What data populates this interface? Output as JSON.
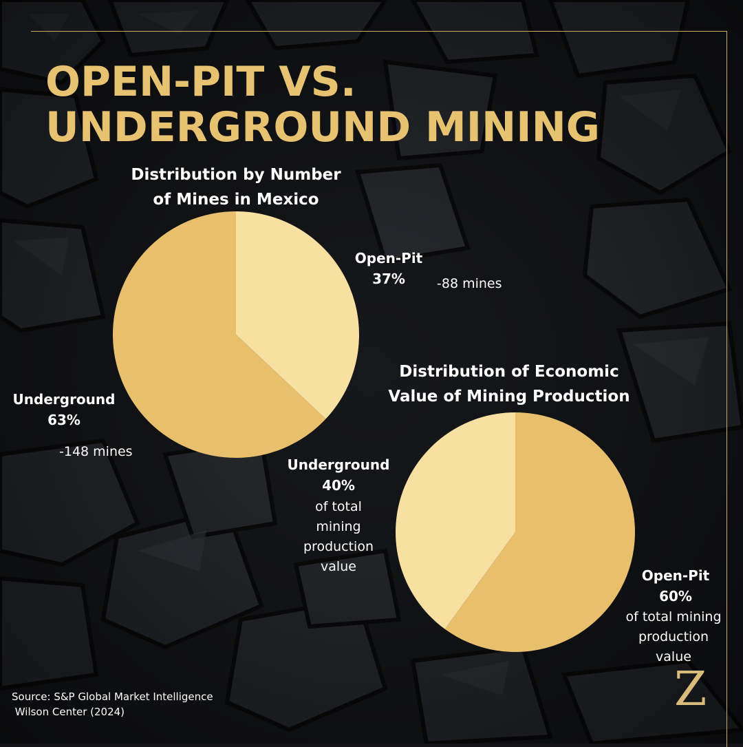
{
  "title_lines": [
    "OPEN-PIT VS.",
    "UNDERGROUND MINING"
  ],
  "colors": {
    "accent": "#e7c271",
    "slice_dark": "#e8c06d",
    "slice_light": "#f8e0a2",
    "background": "#141416"
  },
  "chart_data": [
    {
      "type": "pie",
      "title_lines": [
        "Distribution by Number",
        "of Mines in Mexico"
      ],
      "slices": [
        {
          "label": "Open-Pit",
          "percent_label": "37%",
          "value": 37,
          "note_lines": [
            "-88 mines"
          ],
          "color": "#f8e0a2"
        },
        {
          "label": "Underground",
          "percent_label": "63%",
          "value": 63,
          "note_lines": [
            "-148 mines"
          ],
          "color": "#e8c06d"
        }
      ]
    },
    {
      "type": "pie",
      "title_lines": [
        "Distribution of Economic",
        "Value of Mining Production"
      ],
      "slices": [
        {
          "label": "Open-Pit",
          "percent_label": "60%",
          "value": 60,
          "note_lines": [
            "of total mining",
            "production",
            "value"
          ],
          "color": "#e8c06d"
        },
        {
          "label": "Underground",
          "percent_label": "40%",
          "value": 40,
          "note_lines": [
            "of total",
            "mining",
            "production",
            "value"
          ],
          "color": "#f8e0a2"
        }
      ]
    }
  ],
  "source_lines": [
    "Source:  S&P Global Market Intelligence",
    " Wilson Center (2024)"
  ],
  "logo_letter": "Z"
}
